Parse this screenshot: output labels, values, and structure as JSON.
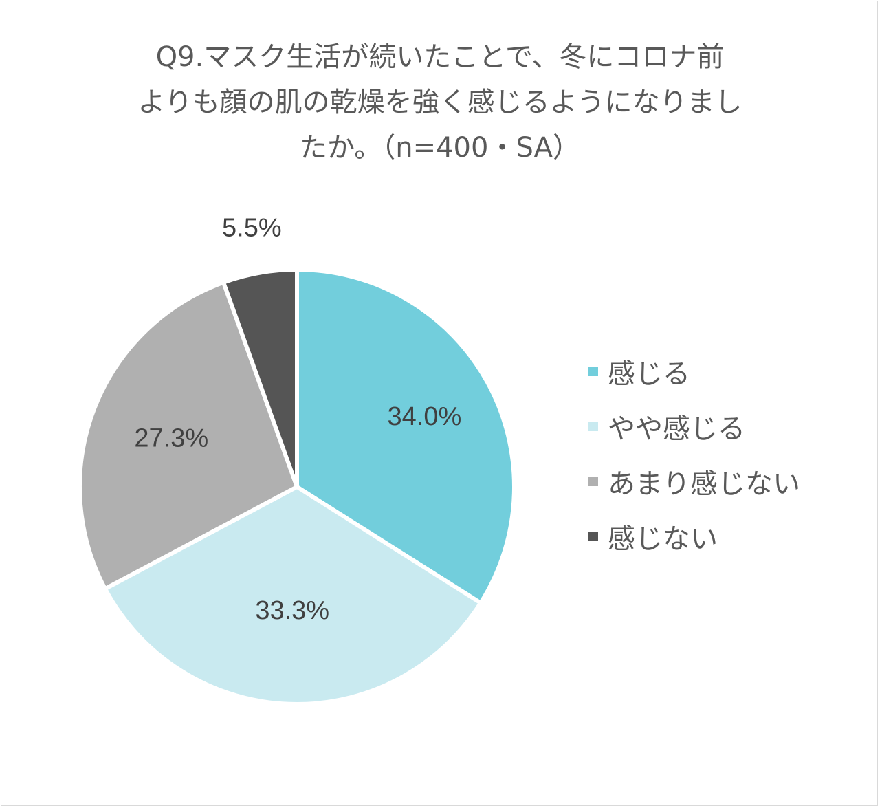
{
  "title_lines": [
    "Q9.マスク生活が続いたことで、冬にコロナ前",
    "よりも顔の肌の乾燥を強く感じるようになりまし",
    "たか。（n=400・SA）"
  ],
  "chart_data": {
    "type": "pie",
    "title": "Q9.マスク生活が続いたことで、冬にコロナ前よりも顔の肌の乾燥を強く感じるようになりましたか。（n=400・SA）",
    "slices": [
      {
        "label": "感じる",
        "value": 34.0,
        "value_label": "34.0%",
        "color": "#72cedc"
      },
      {
        "label": "やや感じる",
        "value": 33.3,
        "value_label": "33.3%",
        "color": "#c9eaf0"
      },
      {
        "label": "あまり感じない",
        "value": 27.3,
        "value_label": "27.3%",
        "color": "#b0b0b0"
      },
      {
        "label": "感じない",
        "value": 5.5,
        "value_label": "5.5%",
        "color": "#555555"
      }
    ],
    "start_angle": "12 o'clock",
    "direction": "clockwise",
    "legend_position": "right",
    "label_color": "#404040"
  }
}
